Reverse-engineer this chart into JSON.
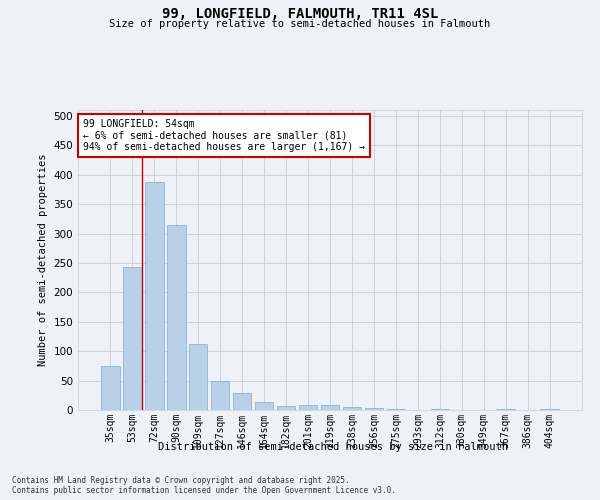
{
  "title_line1": "99, LONGFIELD, FALMOUTH, TR11 4SL",
  "title_line2": "Size of property relative to semi-detached houses in Falmouth",
  "xlabel": "Distribution of semi-detached houses by size in Falmouth",
  "ylabel": "Number of semi-detached properties",
  "categories": [
    "35sqm",
    "53sqm",
    "72sqm",
    "90sqm",
    "109sqm",
    "127sqm",
    "146sqm",
    "164sqm",
    "182sqm",
    "201sqm",
    "219sqm",
    "238sqm",
    "256sqm",
    "275sqm",
    "293sqm",
    "312sqm",
    "330sqm",
    "349sqm",
    "367sqm",
    "386sqm",
    "404sqm"
  ],
  "values": [
    75,
    243,
    387,
    315,
    113,
    50,
    29,
    14,
    6,
    8,
    8,
    5,
    3,
    1,
    0,
    1,
    0,
    0,
    1,
    0,
    2
  ],
  "bar_color": "#b8d0e8",
  "bar_edge_color": "#7aafd4",
  "annotation_title": "99 LONGFIELD: 54sqm",
  "annotation_line1": "← 6% of semi-detached houses are smaller (81)",
  "annotation_line2": "94% of semi-detached houses are larger (1,167) →",
  "annotation_box_color": "#cc0000",
  "ylim": [
    0,
    510
  ],
  "yticks": [
    0,
    50,
    100,
    150,
    200,
    250,
    300,
    350,
    400,
    450,
    500
  ],
  "grid_color": "#cccccc",
  "bg_color": "#eef2f8",
  "footer_line1": "Contains HM Land Registry data © Crown copyright and database right 2025.",
  "footer_line2": "Contains public sector information licensed under the Open Government Licence v3.0."
}
